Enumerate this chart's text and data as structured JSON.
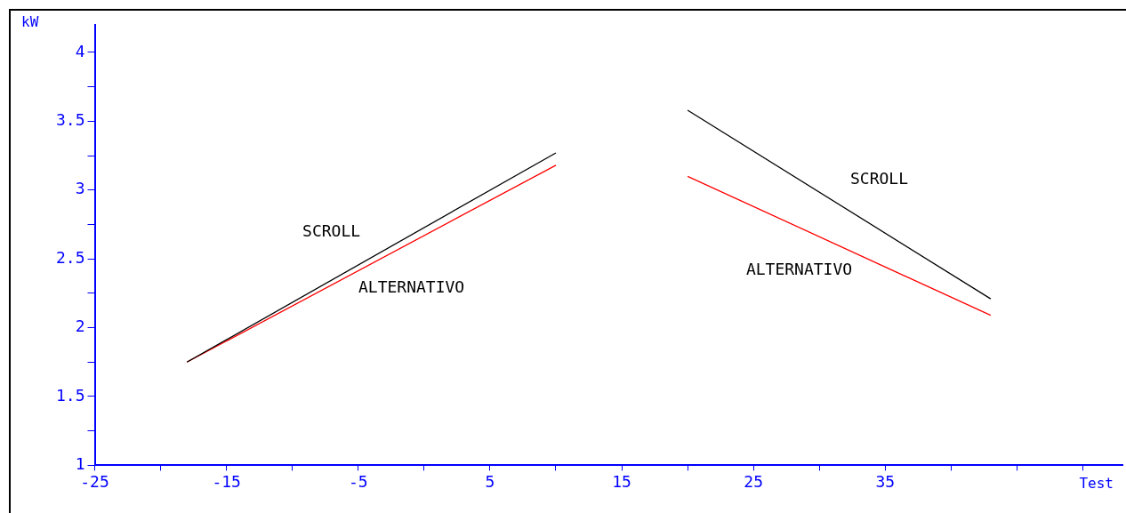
{
  "chart_data": {
    "type": "line",
    "xlabel": "Test",
    "ylabel": "kW",
    "series": [
      {
        "name": "SCROLL",
        "color": "#000000",
        "x": [
          -18,
          10
        ],
        "values": [
          1.75,
          3.27
        ]
      },
      {
        "name": "ALTERNATIVO",
        "color": "#ff0000",
        "x": [
          -18,
          10
        ],
        "values": [
          1.75,
          3.18
        ]
      },
      {
        "name": "SCROLL",
        "color": "#000000",
        "x": [
          20,
          43
        ],
        "values": [
          3.58,
          2.21
        ]
      },
      {
        "name": "ALTERNATIVO",
        "color": "#ff0000",
        "x": [
          20,
          43
        ],
        "values": [
          3.1,
          2.09
        ]
      }
    ],
    "xlim": [
      -25,
      53
    ],
    "xticks": [
      -25,
      {
        "value": -20,
        "label": null
      },
      -15,
      {
        "value": -10,
        "label": null
      },
      -5,
      {
        "value": 0,
        "label": null
      },
      5,
      {
        "value": 10,
        "label": null
      },
      15,
      {
        "value": 20,
        "label": null
      },
      25,
      {
        "value": 30,
        "label": null
      },
      35,
      {
        "value": 40,
        "label": null
      },
      {
        "value": 45,
        "label": null
      },
      {
        "value": 50,
        "label": null
      }
    ],
    "ylim": [
      1,
      4.2
    ],
    "yticks": [
      1,
      {
        "value": 1.25,
        "label": null
      },
      1.5,
      {
        "value": 1.75,
        "label": null
      },
      2,
      {
        "value": 2.25,
        "label": null
      },
      2.5,
      {
        "value": 2.75,
        "label": null
      },
      3,
      {
        "value": 3.25,
        "label": null
      },
      3.5,
      {
        "value": 3.75,
        "label": null
      },
      4
    ],
    "grid": false,
    "legend": false,
    "marker": "none",
    "line_style": "solid"
  }
}
